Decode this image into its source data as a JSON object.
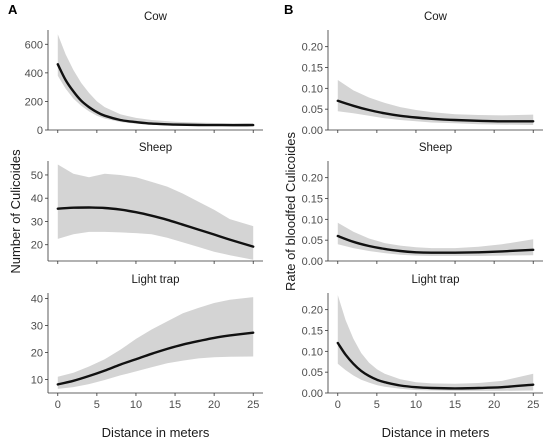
{
  "chart_data": [
    {
      "panel_label": "A",
      "type": "line",
      "ylabel": "Number of Culicoides",
      "xlabel": "Distance in meters",
      "facets": [
        {
          "title": "Cow",
          "ylim": [
            0,
            700
          ],
          "yticks": [
            0,
            200,
            400,
            600
          ],
          "x": [
            0,
            1,
            2,
            3,
            4,
            5,
            6,
            8,
            10,
            12,
            15,
            18,
            21,
            25
          ],
          "fit": [
            460,
            350,
            270,
            205,
            160,
            125,
            100,
            70,
            55,
            45,
            38,
            35,
            34,
            34
          ],
          "lower": [
            380,
            290,
            220,
            170,
            130,
            100,
            80,
            56,
            44,
            36,
            30,
            28,
            27,
            27
          ],
          "upper": [
            670,
            530,
            420,
            330,
            260,
            200,
            160,
            110,
            85,
            70,
            58,
            52,
            48,
            47
          ]
        },
        {
          "title": "Sheep",
          "ylim": [
            13,
            56
          ],
          "yticks": [
            20,
            30,
            40,
            50
          ],
          "x": [
            0,
            2,
            4,
            6,
            8,
            10,
            12,
            14,
            16,
            18,
            20,
            22,
            25
          ],
          "fit": [
            35.5,
            35.9,
            36.0,
            35.8,
            35.1,
            34.0,
            32.5,
            30.7,
            28.6,
            26.5,
            24.4,
            22.2,
            19.2
          ],
          "lower": [
            22.5,
            24.5,
            25.5,
            25.5,
            25.3,
            25.0,
            24.5,
            23.0,
            21.0,
            19.0,
            17.0,
            15.5,
            13.5
          ],
          "upper": [
            54.5,
            50.5,
            49.0,
            50.5,
            50.0,
            49.0,
            47.0,
            45.0,
            42.0,
            38.5,
            35.0,
            31.0,
            28.0
          ]
        },
        {
          "title": "Light trap",
          "ylim": [
            5,
            42
          ],
          "yticks": [
            10,
            20,
            30,
            40
          ],
          "x": [
            0,
            2,
            4,
            6,
            8,
            10,
            12,
            14,
            16,
            18,
            20,
            22,
            25
          ],
          "fit": [
            8.2,
            9.5,
            11.3,
            13.3,
            15.5,
            17.5,
            19.5,
            21.3,
            22.9,
            24.2,
            25.4,
            26.3,
            27.3
          ],
          "lower": [
            6.5,
            7.2,
            8.3,
            9.8,
            11.5,
            13.0,
            14.5,
            16.0,
            17.0,
            17.8,
            18.2,
            18.4,
            18.5
          ],
          "upper": [
            11.0,
            12.5,
            14.8,
            17.5,
            21.0,
            25.0,
            28.5,
            31.5,
            34.5,
            36.5,
            38.3,
            39.5,
            40.5
          ]
        }
      ],
      "xticks": [
        0,
        5,
        10,
        15,
        20,
        25
      ],
      "xlim": [
        -1.25,
        26.25
      ]
    },
    {
      "panel_label": "B",
      "type": "line",
      "ylabel": "Rate of bloodfed Culicoides",
      "xlabel": "Distance in meters",
      "facets": [
        {
          "title": "Cow",
          "ylim": [
            0,
            0.24
          ],
          "yticks": [
            0.0,
            0.05,
            0.1,
            0.15,
            0.2
          ],
          "ytick_labels": [
            "0.00",
            "0.05",
            "0.10",
            "0.15",
            "0.20"
          ],
          "x": [
            0,
            2,
            4,
            6,
            8,
            10,
            12,
            15,
            18,
            21,
            25
          ],
          "fit": [
            0.07,
            0.058,
            0.048,
            0.04,
            0.034,
            0.03,
            0.027,
            0.024,
            0.022,
            0.021,
            0.021
          ],
          "lower": [
            0.045,
            0.04,
            0.034,
            0.028,
            0.024,
            0.021,
            0.018,
            0.016,
            0.014,
            0.013,
            0.012
          ],
          "upper": [
            0.12,
            0.095,
            0.078,
            0.065,
            0.055,
            0.048,
            0.043,
            0.038,
            0.036,
            0.035,
            0.037
          ]
        },
        {
          "title": "Sheep",
          "ylim": [
            0,
            0.24
          ],
          "yticks": [
            0.0,
            0.05,
            0.1,
            0.15,
            0.2
          ],
          "ytick_labels": [
            "0.00",
            "0.05",
            "0.10",
            "0.15",
            "0.20"
          ],
          "x": [
            0,
            2,
            4,
            6,
            8,
            10,
            12,
            15,
            18,
            21,
            25
          ],
          "fit": [
            0.06,
            0.046,
            0.036,
            0.029,
            0.024,
            0.021,
            0.02,
            0.02,
            0.021,
            0.023,
            0.027
          ],
          "lower": [
            0.04,
            0.031,
            0.024,
            0.019,
            0.015,
            0.013,
            0.012,
            0.012,
            0.012,
            0.013,
            0.014
          ],
          "upper": [
            0.092,
            0.07,
            0.054,
            0.043,
            0.037,
            0.033,
            0.031,
            0.031,
            0.034,
            0.04,
            0.052
          ]
        },
        {
          "title": "Light trap",
          "ylim": [
            0,
            0.24
          ],
          "yticks": [
            0.0,
            0.05,
            0.1,
            0.15,
            0.2
          ],
          "ytick_labels": [
            "0.00",
            "0.05",
            "0.10",
            "0.15",
            "0.20"
          ],
          "x": [
            0,
            1,
            2,
            3,
            4,
            5,
            6,
            8,
            10,
            12,
            15,
            18,
            21,
            25
          ],
          "fit": [
            0.12,
            0.092,
            0.07,
            0.053,
            0.041,
            0.032,
            0.026,
            0.018,
            0.014,
            0.012,
            0.011,
            0.012,
            0.014,
            0.02
          ],
          "lower": [
            0.07,
            0.055,
            0.042,
            0.032,
            0.025,
            0.019,
            0.015,
            0.01,
            0.007,
            0.006,
            0.005,
            0.005,
            0.005,
            0.006
          ],
          "upper": [
            0.235,
            0.175,
            0.13,
            0.096,
            0.073,
            0.057,
            0.046,
            0.033,
            0.026,
            0.023,
            0.022,
            0.024,
            0.029,
            0.046
          ]
        }
      ],
      "xticks": [
        0,
        5,
        10,
        15,
        20,
        25
      ],
      "xlim": [
        -1.25,
        26.25
      ]
    }
  ],
  "colors": {
    "band": "#d4d4d4",
    "line": "#111111",
    "axis": "#333333",
    "text": "#4d4d4d"
  }
}
